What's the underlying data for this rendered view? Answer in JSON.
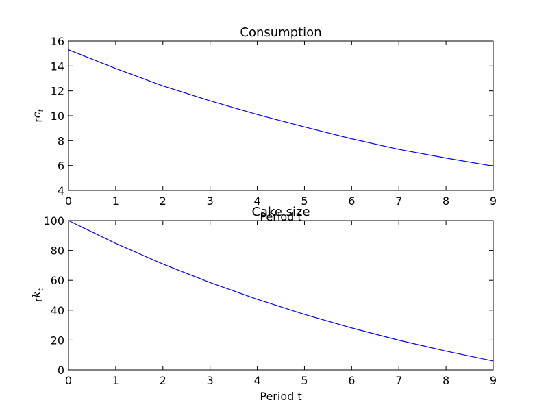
{
  "chart_data": [
    {
      "type": "line",
      "title": "Consumption",
      "xlabel": "Period t",
      "ylabel_main": "r",
      "ylabel_sym": "c",
      "ylabel_sub": "t",
      "xlim": [
        0,
        9
      ],
      "ylim": [
        4,
        16
      ],
      "x_ticks": [
        0,
        1,
        2,
        3,
        4,
        5,
        6,
        7,
        8,
        9
      ],
      "y_ticks": [
        4,
        6,
        8,
        10,
        12,
        14,
        16
      ],
      "grid": false,
      "series": [
        {
          "color": "#0000ff",
          "x": [
            0,
            1,
            2,
            3,
            4,
            5,
            6,
            7,
            8,
            9
          ],
          "y": [
            15.3,
            13.8,
            12.4,
            11.2,
            10.1,
            9.1,
            8.15,
            7.3,
            6.6,
            5.95
          ]
        }
      ]
    },
    {
      "type": "line",
      "title": "Cake size",
      "xlabel": "Period t",
      "ylabel_main": "r",
      "ylabel_sym": "k",
      "ylabel_sub": "t",
      "xlim": [
        0,
        9
      ],
      "ylim": [
        0,
        100
      ],
      "x_ticks": [
        0,
        1,
        2,
        3,
        4,
        5,
        6,
        7,
        8,
        9
      ],
      "y_ticks": [
        0,
        20,
        40,
        60,
        80,
        100
      ],
      "grid": false,
      "series": [
        {
          "color": "#0000ff",
          "x": [
            0,
            1,
            2,
            3,
            4,
            5,
            6,
            7,
            8,
            9
          ],
          "y": [
            100,
            84.7,
            70.9,
            58.5,
            47.3,
            37.2,
            28.1,
            19.9,
            12.6,
            6.0
          ]
        }
      ]
    }
  ]
}
